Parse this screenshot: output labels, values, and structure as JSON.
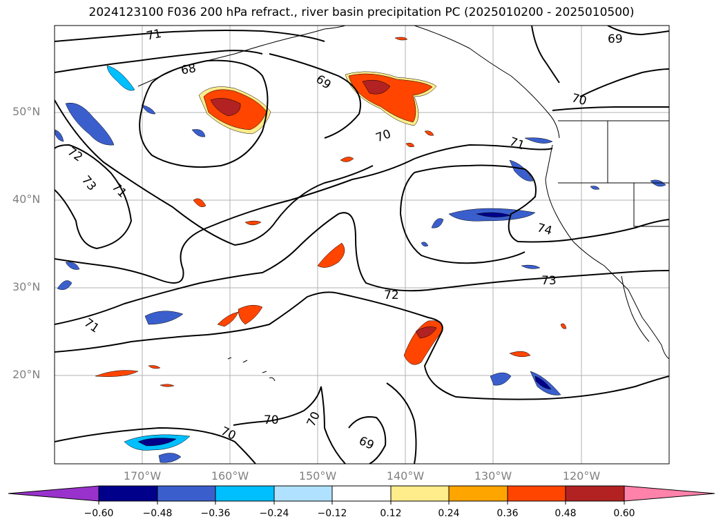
{
  "title": "2024123100 F036 200 hPa refract., river basin precipitation PC (2025010200 - 2025010500)",
  "map": {
    "projection": "cylindrical",
    "lon_range": [
      "180°W",
      "110°W"
    ],
    "lat_range": [
      "10°N",
      "60°N"
    ],
    "gridlines": true,
    "lat_labels": [
      "50°N",
      "40°N",
      "30°N",
      "20°N"
    ],
    "lon_labels": [
      "170°W",
      "160°W",
      "150°W",
      "140°W",
      "130°W",
      "120°W"
    ],
    "contour_labels": [
      "71",
      "68",
      "69",
      "69",
      "70",
      "71",
      "70",
      "72",
      "73",
      "71",
      "74",
      "73",
      "72",
      "71",
      "70",
      "70",
      "70",
      "69"
    ]
  },
  "colorbar": {
    "extend": "both",
    "ticks": [
      "−0.60",
      "−0.48",
      "−0.36",
      "−0.24",
      "−0.12",
      "0.12",
      "0.24",
      "0.36",
      "0.48",
      "0.60"
    ],
    "colors": [
      "#9932cc",
      "#00008b",
      "#3a5fcd",
      "#00bfff",
      "#b0e2ff",
      "#ffffff",
      "#ffec8b",
      "#ffa500",
      "#ff4500",
      "#b22222",
      "#ff82ab"
    ]
  }
}
